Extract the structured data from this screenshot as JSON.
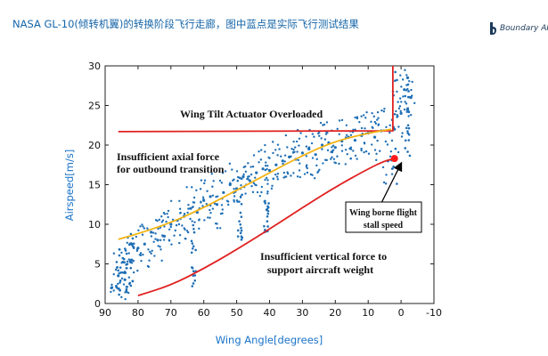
{
  "slide": {
    "title": "NASA GL-10(倾转机翼)的转换阶段飞行走廊，图中蓝点是实际飞行测试结果",
    "logo_text": "Boundary AI"
  },
  "colors": {
    "title": "#1565a8",
    "flight_data": "#1f6fb5",
    "upper_limit": "#e02020",
    "axial_force_limit": "#f2b312",
    "vertical_force_limit": "#e02020",
    "stall_marker": "#ff1a1a"
  },
  "chart_data": {
    "type": "scatter",
    "title": "",
    "xlabel": "Wing Angle[degrees]",
    "ylabel": "Airspeed[m/s]",
    "xlim": [
      90,
      -10
    ],
    "ylim": [
      0,
      30
    ],
    "xticks": [
      90,
      80,
      70,
      60,
      50,
      40,
      30,
      20,
      10,
      0,
      -10
    ],
    "yticks": [
      0,
      5,
      10,
      15,
      20,
      25,
      30
    ],
    "grid": false,
    "series": [
      {
        "name": "Wing tilt actuator limit",
        "type": "line",
        "x": [
          86,
          2.5,
          2.5
        ],
        "y": [
          21.7,
          21.8,
          30
        ]
      },
      {
        "name": "Axial force limit",
        "type": "line",
        "x": [
          86,
          80,
          70,
          60,
          50,
          40,
          30,
          20,
          10,
          3
        ],
        "y": [
          8.1,
          8.8,
          10.2,
          12.1,
          14.3,
          16.5,
          18.7,
          20.5,
          21.5,
          22
        ]
      },
      {
        "name": "Vertical force limit",
        "type": "line",
        "x": [
          80,
          70,
          60,
          50,
          40,
          30,
          20,
          10,
          5,
          2
        ],
        "y": [
          1,
          2.3,
          4.4,
          6.8,
          9.4,
          12.1,
          14.7,
          17,
          18,
          18.3
        ]
      },
      {
        "name": "Flight test data",
        "type": "scatter",
        "x": [
          88,
          86,
          84,
          82,
          80,
          78,
          76,
          74,
          72,
          70,
          68,
          66,
          64,
          62,
          60,
          58,
          56,
          54,
          52,
          50,
          48,
          46,
          44,
          42,
          40,
          38,
          36,
          34,
          32,
          30,
          28,
          26,
          24,
          22,
          20,
          18,
          16,
          14,
          12,
          10,
          8,
          6,
          4,
          2,
          0,
          -1,
          -2,
          -3
        ],
        "y": [
          2,
          3.5,
          3,
          5.5,
          7,
          7.5,
          9,
          8,
          8.5,
          10,
          10.5,
          11,
          12,
          11.5,
          13,
          13.5,
          12.5,
          14,
          15,
          14.5,
          16,
          15.5,
          16.5,
          17,
          16.8,
          17.5,
          18,
          18.5,
          18.2,
          19,
          19.5,
          18.8,
          20,
          20.3,
          19.7,
          20.5,
          21,
          20.6,
          21.2,
          21.5,
          21,
          21.8,
          18,
          22,
          24,
          27,
          28.5,
          26
        ]
      }
    ],
    "markers": [
      {
        "name": "Wing borne flight stall speed",
        "x": 2,
        "y": 18.3
      }
    ],
    "annotations": [
      {
        "text": "Wing Tilt Actuator Overloaded"
      },
      {
        "text": "Insufficient axial force"
      },
      {
        "text": "for outbound transition"
      },
      {
        "text": "Wing borne flight"
      },
      {
        "text": "stall speed"
      },
      {
        "text": "Insufficient vertical force to"
      },
      {
        "text": "support aircraft weight"
      }
    ]
  }
}
